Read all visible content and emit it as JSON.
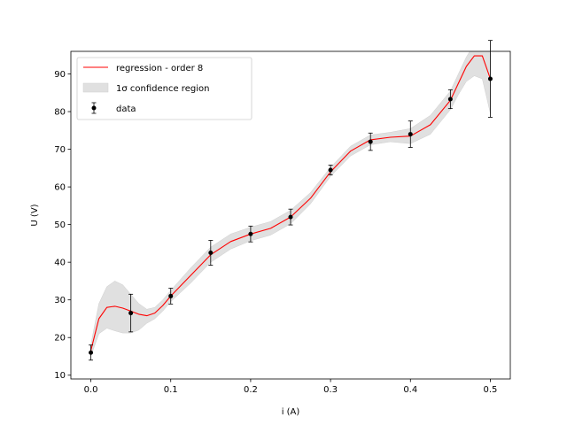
{
  "chart_data": {
    "type": "scatter",
    "xlabel": "i (A)",
    "ylabel": "U (V)",
    "xlim": [
      -0.025,
      0.525
    ],
    "ylim": [
      9.0,
      96.0
    ],
    "x_ticks": [
      0.0,
      0.1,
      0.2,
      0.3,
      0.4,
      0.5
    ],
    "x_tick_labels": [
      "0.0",
      "0.1",
      "0.2",
      "0.3",
      "0.4",
      "0.5"
    ],
    "y_ticks": [
      10,
      20,
      30,
      40,
      50,
      60,
      70,
      80,
      90
    ],
    "y_tick_labels": [
      "10",
      "20",
      "30",
      "40",
      "50",
      "60",
      "70",
      "80",
      "90"
    ],
    "grid": false,
    "legend_position": "top-left",
    "legend": [
      {
        "key": "regression",
        "label": "regression - order 8"
      },
      {
        "key": "confidence",
        "label": "1σ confidence region"
      },
      {
        "key": "data",
        "label": "data"
      }
    ],
    "data_series": {
      "name": "data",
      "x": [
        0.0,
        0.05,
        0.1,
        0.15,
        0.2,
        0.25,
        0.3,
        0.35,
        0.4,
        0.45,
        0.5
      ],
      "y": [
        16.0,
        26.5,
        31.0,
        42.5,
        47.5,
        52.0,
        64.5,
        72.0,
        74.0,
        83.3,
        88.7
      ],
      "yerr": [
        2.0,
        5.0,
        2.1,
        3.3,
        2.1,
        2.1,
        1.3,
        2.3,
        3.5,
        2.5,
        10.2
      ]
    },
    "regression": {
      "name": "regression - order 8",
      "color": "#ff0000",
      "x": [
        0.0,
        0.01,
        0.02,
        0.03,
        0.04,
        0.05,
        0.06,
        0.07,
        0.08,
        0.09,
        0.1,
        0.125,
        0.15,
        0.175,
        0.2,
        0.225,
        0.25,
        0.275,
        0.3,
        0.325,
        0.35,
        0.375,
        0.4,
        0.425,
        0.45,
        0.46,
        0.47,
        0.48,
        0.49,
        0.5
      ],
      "y": [
        16.5,
        25.0,
        28.0,
        28.3,
        27.8,
        27.0,
        26.2,
        25.8,
        26.5,
        28.5,
        31.0,
        36.5,
        42.0,
        45.5,
        47.5,
        49.0,
        52.0,
        57.0,
        64.0,
        69.5,
        72.5,
        73.2,
        73.5,
        76.5,
        83.0,
        87.5,
        92.0,
        94.8,
        94.8,
        88.7
      ]
    },
    "confidence": {
      "name": "1σ confidence region",
      "color": "#e0e0e0",
      "x": [
        0.0,
        0.01,
        0.02,
        0.03,
        0.04,
        0.05,
        0.06,
        0.07,
        0.08,
        0.09,
        0.1,
        0.125,
        0.15,
        0.175,
        0.2,
        0.225,
        0.25,
        0.275,
        0.3,
        0.325,
        0.35,
        0.375,
        0.4,
        0.425,
        0.45,
        0.46,
        0.47,
        0.48,
        0.49,
        0.5
      ],
      "upper": [
        18.0,
        29.0,
        33.5,
        35.0,
        34.0,
        31.5,
        29.0,
        27.5,
        28.0,
        30.0,
        32.5,
        38.5,
        44.0,
        47.5,
        49.3,
        50.8,
        53.8,
        58.5,
        65.2,
        70.8,
        73.8,
        74.5,
        75.5,
        79.0,
        85.5,
        90.0,
        94.5,
        98.0,
        98.5,
        96.5
      ],
      "lower": [
        15.0,
        21.0,
        22.5,
        21.8,
        21.2,
        21.2,
        22.0,
        23.8,
        25.0,
        27.0,
        29.5,
        34.5,
        40.0,
        43.5,
        45.7,
        47.2,
        50.2,
        55.5,
        62.8,
        68.2,
        71.2,
        72.0,
        71.5,
        74.0,
        80.5,
        84.5,
        88.0,
        89.5,
        88.7,
        79.5
      ]
    }
  }
}
